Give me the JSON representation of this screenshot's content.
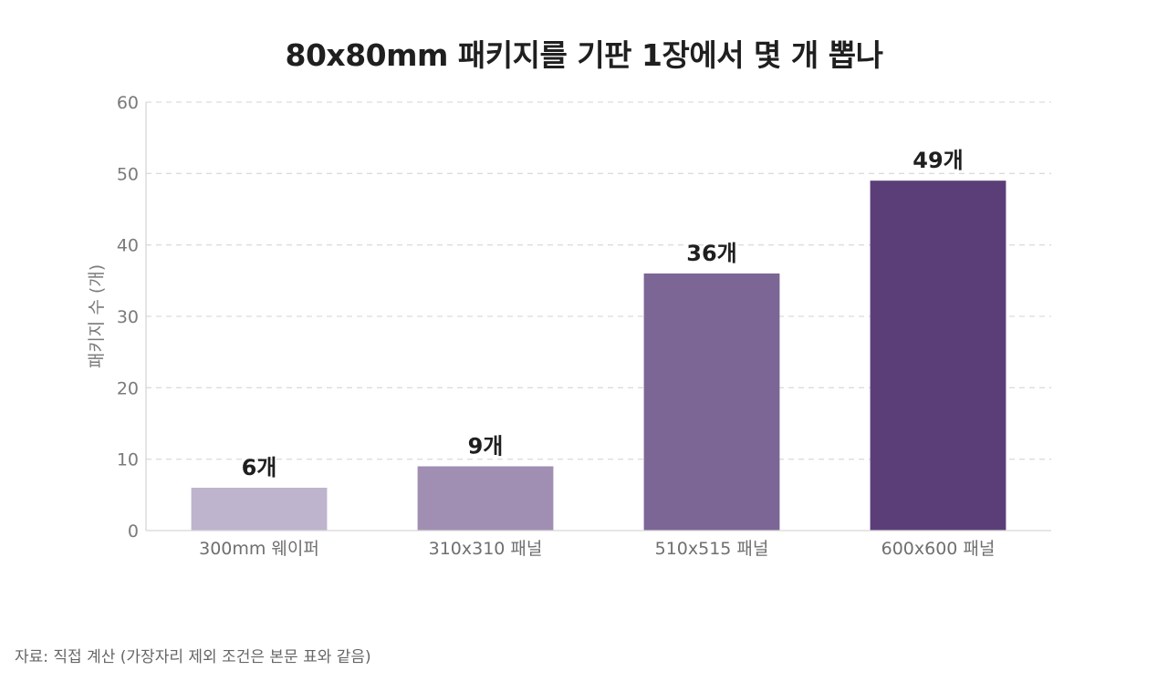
{
  "chart_data": {
    "type": "bar",
    "title": "80x80mm 패키지를 기판 1장에서 몇 개 뽑나",
    "ylabel": "패키지 수 (개)",
    "xlabel": "",
    "categories": [
      "300mm 웨이퍼",
      "310x310 패널",
      "510x515 패널",
      "600x600 패널"
    ],
    "values": [
      6,
      9,
      36,
      49
    ],
    "data_labels": [
      "6개",
      "9개",
      "36개",
      "49개"
    ],
    "bar_colors": [
      "#bfb4cd",
      "#a08fb3",
      "#7b6695",
      "#5b3e78"
    ],
    "ylim": [
      0,
      60
    ],
    "yticks": [
      0,
      10,
      20,
      30,
      40,
      50,
      60
    ],
    "grid": true,
    "legend": "none"
  },
  "footer": {
    "source": "자료: 직접 계산 (가장자리 제외 조건은 본문 표와 같음)"
  }
}
